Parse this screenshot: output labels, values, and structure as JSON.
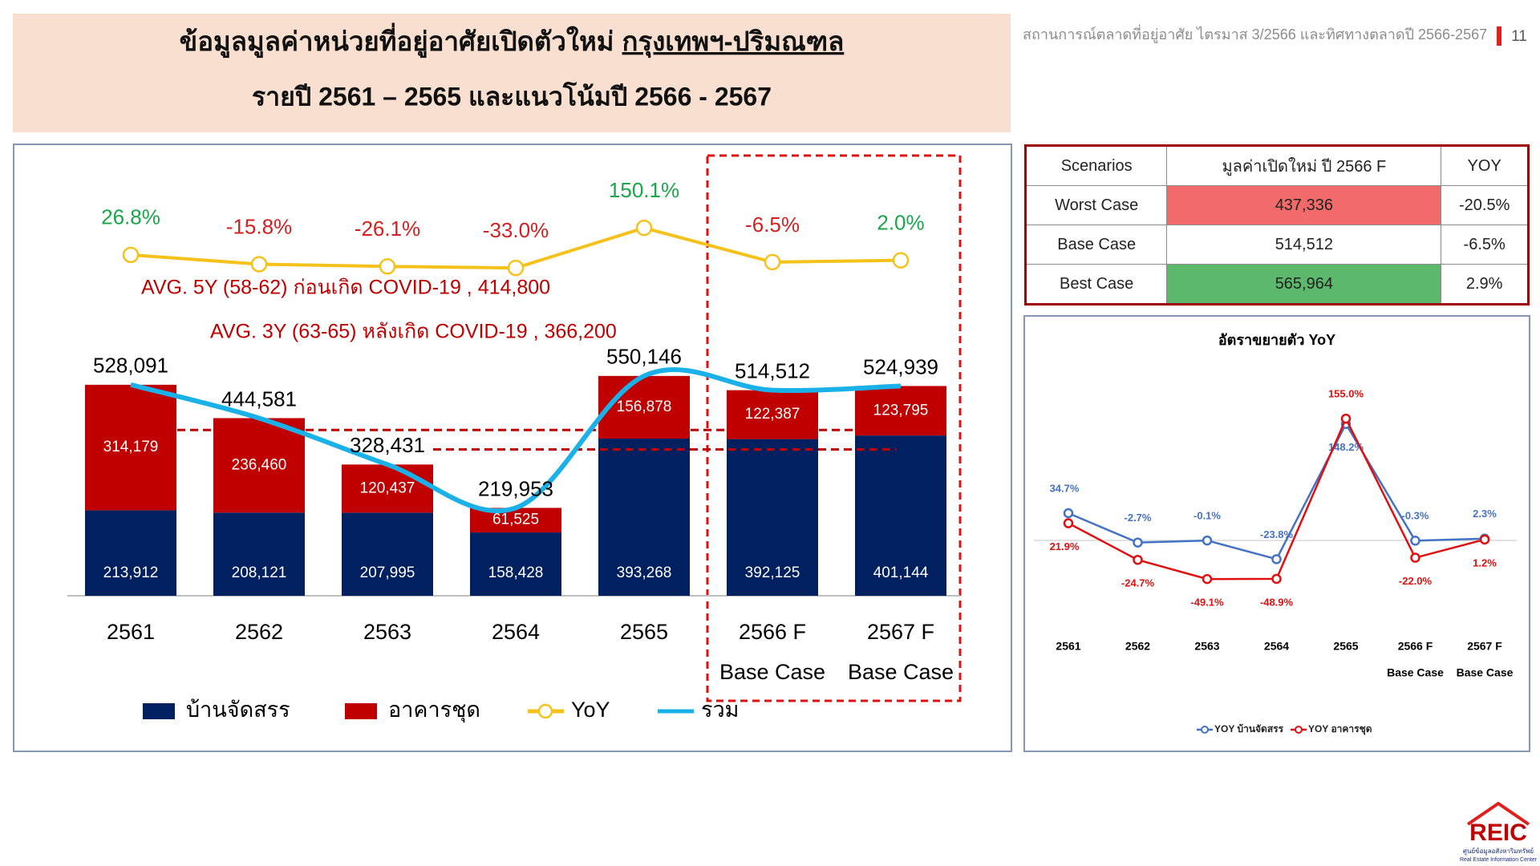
{
  "header": {
    "title": [
      "ข้อมูลมูลค่าหน่วยที่อยู่อาศัยเปิดตัวใหม่",
      "กรุงเทพฯ-ปริมณฑล"
    ],
    "subtitle": "รายปี 2561 – 2565 และแนวโน้มปี 2566 - 2567",
    "report": "สถานการณ์ตลาดที่อยู่อาศัย ไตรมาส 3/2566 และทิศทางตลาดปี 2566-2567",
    "page": "11"
  },
  "table": {
    "columns": [
      "Scenarios",
      "มูลค่าเปิดใหม่ ปี 2566 F",
      "YOY"
    ],
    "rows": [
      [
        "Worst Case",
        "437,336",
        "-20.5%"
      ],
      [
        "Base Case",
        "514,512",
        "-6.5%"
      ],
      [
        "Best Case",
        "565,964",
        "2.9%"
      ]
    ]
  },
  "logo": {
    "name": "REIC",
    "thai": "ศูนย์ข้อมูลอสังหาริมทรัพย์",
    "english": "Real Estate Information Center"
  },
  "chart_data": [
    {
      "type": "bar",
      "stacked": true,
      "categories": [
        "2561",
        "2562",
        "2563",
        "2564",
        "2565",
        "2566 F",
        "2567 F"
      ],
      "category_notes": [
        null,
        null,
        null,
        null,
        null,
        "Base Case",
        "Base Case"
      ],
      "ylim": [
        0,
        600000
      ],
      "y2lim": [
        -300,
        400
      ],
      "series": [
        {
          "name": "บ้านจัดสรร",
          "color": "#002060",
          "values": [
            213912,
            208121,
            207995,
            158428,
            393268,
            392125,
            401144
          ],
          "value_labels": [
            "213,912",
            "208,121",
            "207,995",
            "158,428",
            "393,268",
            "392,125",
            "401,144"
          ]
        },
        {
          "name": "อาคารชุด",
          "color": "#c00000",
          "values": [
            314179,
            236460,
            120437,
            61525,
            156878,
            122387,
            123795
          ],
          "value_labels": [
            "314,179",
            "236,460",
            "120,437",
            "61,525",
            "156,878",
            "122,387",
            "123,795"
          ]
        },
        {
          "name": "YoY",
          "type": "line",
          "axis": "y2",
          "color": "#f5c21b",
          "values": [
            26.8,
            -15.8,
            -26.1,
            -33.0,
            150.1,
            -6.5,
            2.0
          ],
          "value_labels": [
            "26.8%",
            "-15.8%",
            "-26.1%",
            "-33.0%",
            "150.1%",
            "-6.5%",
            "2.0%"
          ]
        },
        {
          "name": "รวม",
          "type": "line",
          "color": "#1ab0e8",
          "values": [
            528091,
            444581,
            328431,
            219953,
            550146,
            514512,
            524939
          ],
          "value_labels": [
            "528,091",
            "444,581",
            "328,431",
            "219,953",
            "550,146",
            "514,512",
            "524,939"
          ]
        }
      ],
      "reference_lines": [
        {
          "label": "AVG. 5Y (58-62) ก่อนเกิด COVID-19 ,  414,800",
          "value": 414800,
          "color": "#c00000"
        },
        {
          "label": "AVG. 3Y (63-65) หลังเกิด COVID-19 ,  366,200",
          "value": 366200,
          "color": "#c00000"
        }
      ]
    },
    {
      "type": "line",
      "title": "อัตราขยายตัว YoY",
      "categories": [
        "2561",
        "2562",
        "2563",
        "2564",
        "2565",
        "2566 F",
        "2567 F"
      ],
      "category_notes": [
        null,
        null,
        null,
        null,
        null,
        "Base Case",
        "Base Case"
      ],
      "ylim": [
        -100,
        200
      ],
      "series": [
        {
          "name": "YOY บ้านจัดสรร",
          "color": "#4472c4",
          "values": [
            34.7,
            -2.7,
            -0.1,
            -23.8,
            148.2,
            -0.3,
            2.3
          ],
          "value_labels": [
            "34.7%",
            "-2.7%",
            "-0.1%",
            "-23.8%",
            "148.2%",
            "-0.3%",
            "2.3%"
          ]
        },
        {
          "name": "YOY อาคารชุด",
          "color": "#e01010",
          "values": [
            21.9,
            -24.7,
            -49.1,
            -48.9,
            155.0,
            -22.0,
            1.2
          ],
          "value_labels": [
            "21.9%",
            "-24.7%",
            "-49.1%",
            "-48.9%",
            "155.0%",
            "-22.0%",
            "1.2%"
          ]
        }
      ]
    }
  ]
}
